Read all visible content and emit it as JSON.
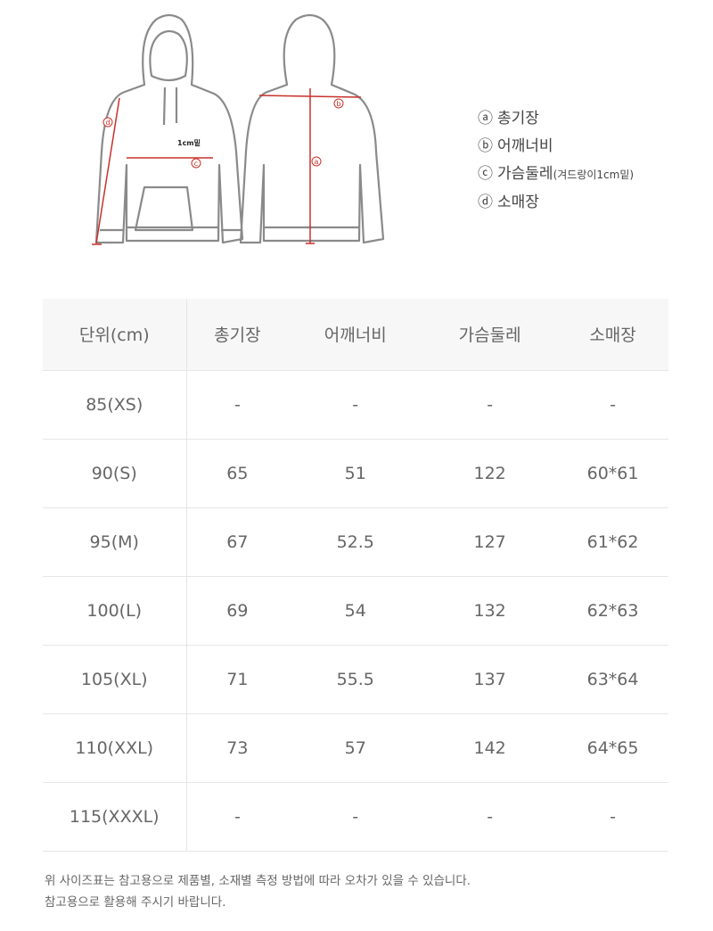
{
  "illustration": {
    "labels": {
      "a": "a",
      "b": "b",
      "c": "c",
      "d": "d",
      "offset": "1cm밑"
    },
    "measure_color": "#c8312b"
  },
  "legend": [
    {
      "mark": "ⓐ",
      "label": "총기장",
      "note": ""
    },
    {
      "mark": "ⓑ",
      "label": "어깨너비",
      "note": ""
    },
    {
      "mark": "ⓒ",
      "label": "가슴둘레",
      "note": "(겨드랑이1cm밑)"
    },
    {
      "mark": "ⓓ",
      "label": "소매장",
      "note": ""
    }
  ],
  "table": {
    "headers": [
      "단위(cm)",
      "총기장",
      "어깨너비",
      "가슴둘레",
      "소매장"
    ],
    "rows": [
      [
        "85(XS)",
        "-",
        "-",
        "-",
        "-"
      ],
      [
        "90(S)",
        "65",
        "51",
        "122",
        "60*61"
      ],
      [
        "95(M)",
        "67",
        "52.5",
        "127",
        "61*62"
      ],
      [
        "100(L)",
        "69",
        "54",
        "132",
        "62*63"
      ],
      [
        "105(XL)",
        "71",
        "55.5",
        "137",
        "63*64"
      ],
      [
        "110(XXL)",
        "73",
        "57",
        "142",
        "64*65"
      ],
      [
        "115(XXXL)",
        "-",
        "-",
        "-",
        "-"
      ]
    ]
  },
  "notes": [
    "위 사이즈표는 참고용으로 제품별, 소재별 측정 방법에 따라 오차가 있을 수 있습니다.",
    "참고용으로 활용해 주시기 바랍니다."
  ]
}
